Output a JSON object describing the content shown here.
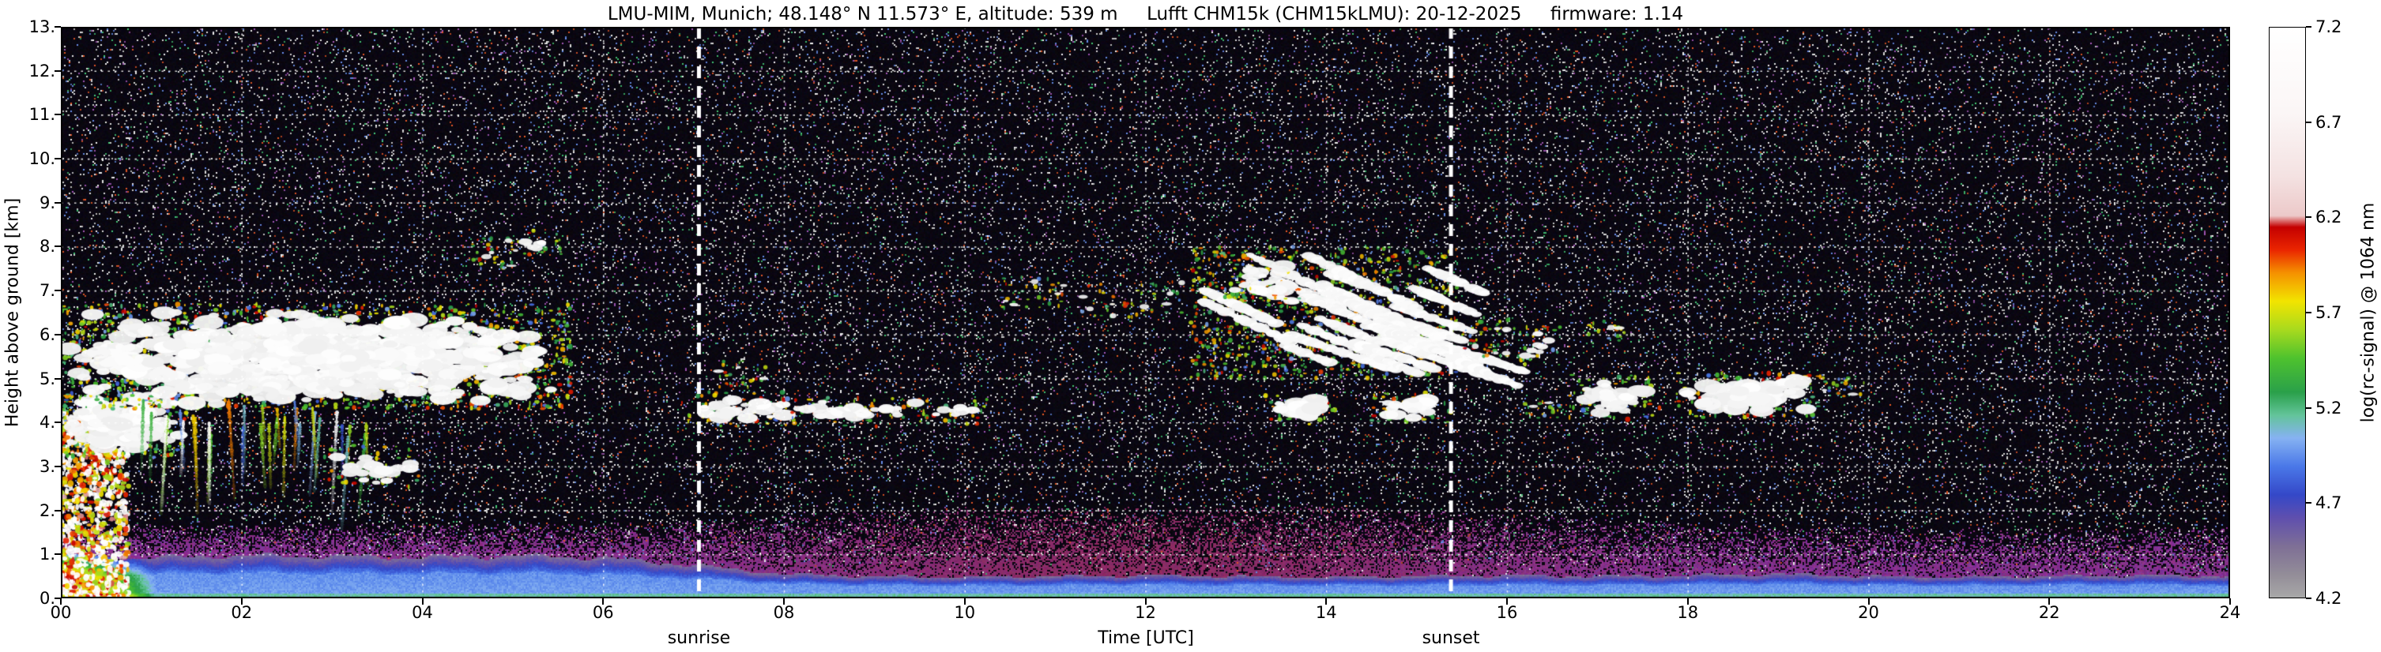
{
  "chart_data": {
    "type": "heatmap",
    "title": "LMU-MIM, Munich; 48.148° N 11.573° E, altitude: 539 m     Lufft CHM15k (CHM15kLMU): 20-12-2025     firmware: 1.14",
    "xlabel": "Time [UTC]",
    "ylabel": "Height above ground [km]",
    "x_ticks": [
      "00",
      "02",
      "04",
      "06",
      "08",
      "10",
      "12",
      "14",
      "16",
      "18",
      "20",
      "22",
      "24"
    ],
    "x_range_hours": [
      0,
      24
    ],
    "y_ticks": [
      "0.",
      "1.",
      "2.",
      "3.",
      "4.",
      "5.",
      "6.",
      "7.",
      "8.",
      "9.",
      "10.",
      "11.",
      "12.",
      "13."
    ],
    "y_range_km": [
      0,
      13
    ],
    "grid": "white dotted lines every 1 km and every 2 h",
    "colorbar": {
      "label": "log(rc-signal) @ 1064 nm",
      "ticks": [
        "4.2",
        "4.7",
        "5.2",
        "5.7",
        "6.2",
        "6.7",
        "7.2"
      ],
      "range": [
        4.2,
        7.2
      ],
      "stops": [
        {
          "t": 0.0,
          "c": "#a8a8a8"
        },
        {
          "t": 0.04,
          "c": "#938d98"
        },
        {
          "t": 0.09,
          "c": "#7e6f96"
        },
        {
          "t": 0.14,
          "c": "#5f4fae"
        },
        {
          "t": 0.18,
          "c": "#3448c8"
        },
        {
          "t": 0.23,
          "c": "#4a78e8"
        },
        {
          "t": 0.28,
          "c": "#86b2f2"
        },
        {
          "t": 0.32,
          "c": "#63c49a"
        },
        {
          "t": 0.36,
          "c": "#2aa04a"
        },
        {
          "t": 0.42,
          "c": "#4ec22e"
        },
        {
          "t": 0.47,
          "c": "#a8da1e"
        },
        {
          "t": 0.52,
          "c": "#f2e400"
        },
        {
          "t": 0.57,
          "c": "#f59000"
        },
        {
          "t": 0.61,
          "c": "#ea2500"
        },
        {
          "t": 0.65,
          "c": "#c40000"
        },
        {
          "t": 0.67,
          "c": "#ecc9c9"
        },
        {
          "t": 0.74,
          "c": "#f4e2e2"
        },
        {
          "t": 0.85,
          "c": "#fbf6f6"
        },
        {
          "t": 1.0,
          "c": "#ffffff"
        }
      ]
    },
    "annotations": [
      {
        "label": "sunrise",
        "hour": 7.06
      },
      {
        "label": "sunset",
        "hour": 15.38
      }
    ],
    "background": "dark noise speckle (signal ~4.2 and below) over near-black",
    "boundary_layer": {
      "description": "aerosol / mixed layer with strong backscatter below ~1 km, purple haze fading to ~2 km",
      "top_km_by_hour": [
        0.95,
        0.92,
        0.97,
        0.95,
        0.93,
        0.96,
        0.92,
        0.75,
        0.55,
        0.5,
        0.48,
        0.5,
        0.52,
        0.5,
        0.48,
        0.5,
        0.52,
        0.5,
        0.52,
        0.55,
        0.5,
        0.48,
        0.5,
        0.52,
        0.5
      ],
      "haze_top_km_by_hour": [
        1.7,
        1.7,
        1.7,
        1.7,
        1.7,
        1.7,
        1.7,
        1.75,
        1.9,
        2.0,
        2.1,
        2.1,
        2.1,
        2.1,
        2.1,
        2.0,
        1.9,
        1.8,
        1.7,
        1.6,
        1.6,
        1.6,
        1.6,
        1.6,
        1.6
      ],
      "surface_value": 5.4,
      "core_value": 5.0,
      "precip_event": {
        "hours": [
          0.0,
          1.0
        ],
        "note": "strong low-level echo reaching ~4 km at 00:00–01:00"
      }
    },
    "cloud_regions": [
      {
        "style": "column",
        "t": [
          0.0,
          0.75
        ],
        "h": [
          0.0,
          4.3
        ],
        "density": 0.9
      },
      {
        "style": "blob",
        "t": [
          0.05,
          1.35
        ],
        "h": [
          3.3,
          4.7
        ],
        "density": 0.8
      },
      {
        "style": "blob",
        "t": [
          0.0,
          5.6
        ],
        "h": [
          4.4,
          6.6
        ],
        "density": 0.85
      },
      {
        "style": "virga",
        "t": [
          0.8,
          3.4
        ],
        "h": [
          2.1,
          4.5
        ],
        "density": 0.55
      },
      {
        "style": "blob",
        "t": [
          2.95,
          3.95
        ],
        "h": [
          2.6,
          3.4
        ],
        "density": 0.45
      },
      {
        "style": "scatter",
        "t": [
          4.55,
          5.05
        ],
        "h": [
          7.5,
          8.2
        ],
        "density": 0.45
      },
      {
        "style": "blob",
        "t": [
          5.05,
          5.5
        ],
        "h": [
          7.9,
          8.3
        ],
        "density": 0.4
      },
      {
        "style": "blob",
        "t": [
          6.9,
          8.1
        ],
        "h": [
          4.0,
          4.6
        ],
        "density": 0.55
      },
      {
        "style": "scatter",
        "t": [
          7.25,
          7.8
        ],
        "h": [
          4.8,
          5.4
        ],
        "density": 0.35
      },
      {
        "style": "blob",
        "t": [
          8.0,
          9.6
        ],
        "h": [
          4.0,
          4.5
        ],
        "density": 0.45
      },
      {
        "style": "blob",
        "t": [
          9.6,
          10.2
        ],
        "h": [
          4.05,
          4.45
        ],
        "density": 0.4
      },
      {
        "style": "scatter",
        "t": [
          10.4,
          11.1
        ],
        "h": [
          6.6,
          7.3
        ],
        "density": 0.35
      },
      {
        "style": "scatter",
        "t": [
          11.3,
          12.45
        ],
        "h": [
          6.4,
          7.2
        ],
        "density": 0.3
      },
      {
        "style": "diag",
        "t": [
          12.5,
          15.45
        ],
        "h": [
          5.0,
          8.0
        ],
        "density": 0.75
      },
      {
        "style": "blob",
        "t": [
          12.9,
          13.65
        ],
        "h": [
          6.9,
          7.7
        ],
        "density": 0.6
      },
      {
        "style": "blob",
        "t": [
          13.35,
          14.05
        ],
        "h": [
          4.05,
          4.55
        ],
        "density": 0.7
      },
      {
        "style": "blob",
        "t": [
          14.55,
          15.35
        ],
        "h": [
          4.1,
          4.6
        ],
        "density": 0.65
      },
      {
        "style": "scatter",
        "t": [
          15.5,
          16.05
        ],
        "h": [
          5.5,
          6.5
        ],
        "density": 0.4
      },
      {
        "style": "blob",
        "t": [
          16.1,
          16.55
        ],
        "h": [
          5.4,
          6.1
        ],
        "density": 0.35
      },
      {
        "style": "scatter",
        "t": [
          16.9,
          17.3
        ],
        "h": [
          5.8,
          6.3
        ],
        "density": 0.25
      },
      {
        "style": "scatter",
        "t": [
          16.2,
          16.6
        ],
        "h": [
          4.1,
          4.5
        ],
        "density": 0.3
      },
      {
        "style": "blob",
        "t": [
          16.7,
          17.65
        ],
        "h": [
          4.15,
          5.0
        ],
        "density": 0.55
      },
      {
        "style": "blob",
        "t": [
          17.9,
          19.4
        ],
        "h": [
          4.2,
          5.05
        ],
        "density": 0.8
      },
      {
        "style": "scatter",
        "t": [
          19.45,
          19.95
        ],
        "h": [
          4.6,
          5.1
        ],
        "density": 0.3
      }
    ]
  }
}
